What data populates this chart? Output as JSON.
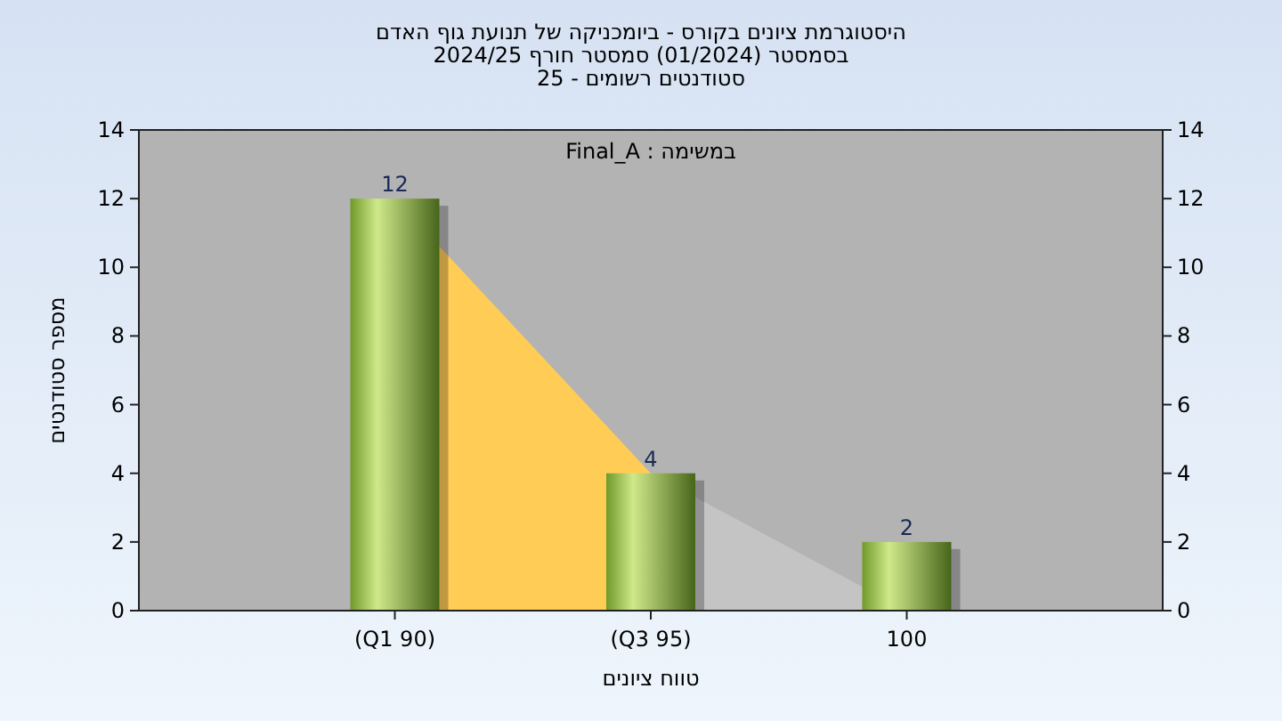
{
  "chart_data": {
    "type": "bar",
    "title": "היסטוגרמת ציונים בקורס - ביומכניקה של תנועת גוף האדם",
    "subtitle": "בסמסטר (01/2024) סמסטר חורף 2024/25\nסטודנטים רשומים - 25",
    "xlabel": "טווח ציונים",
    "ylabel": "מספר סטודנטים",
    "annotations": [
      "במשימה : Final_A"
    ],
    "categories": [
      "(Q1 90)",
      "(Q3 95)",
      "100"
    ],
    "series": [
      {
        "type": "area",
        "color": "#ffcc55",
        "values": [
          12,
          4,
          null
        ]
      },
      {
        "type": "area",
        "color": "#c4c4c4",
        "values": [
          null,
          4,
          0
        ]
      },
      {
        "color": "#8cb83c",
        "values": [
          12,
          4,
          2
        ],
        "value_labels": [
          "12",
          "4",
          "2"
        ]
      }
    ],
    "ylim": [
      0,
      14
    ],
    "yticks": [
      0,
      2,
      4,
      6,
      8,
      10,
      12,
      14
    ],
    "y2lim": [
      0,
      14
    ],
    "y2ticks": [
      0,
      2,
      4,
      6,
      8,
      10,
      12,
      14
    ],
    "grid": false
  }
}
